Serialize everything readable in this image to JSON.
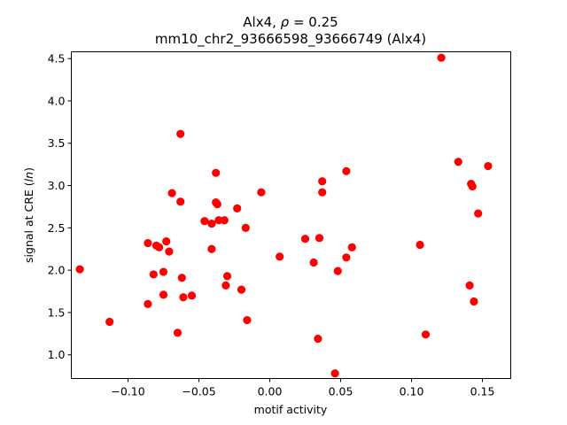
{
  "chart_data": {
    "type": "scatter",
    "title_line1_prefix": "Alx4, ",
    "title_line1_rho": "ρ",
    "title_line1_suffix": " = 0.25",
    "title_line2": "mm10_chr2_93666598_93666749 (Alx4)",
    "xlabel": "motif activity",
    "ylabel_prefix": "signal at CRE (",
    "ylabel_ln": "ln",
    "ylabel_suffix": ")",
    "xlim": [
      -0.14,
      0.17
    ],
    "ylim": [
      0.72,
      4.58
    ],
    "xticks": [
      -0.1,
      -0.05,
      0.0,
      0.05,
      0.1,
      0.15
    ],
    "xtick_labels": [
      "−0.10",
      "−0.05",
      "0.00",
      "0.05",
      "0.10",
      "0.15"
    ],
    "yticks": [
      1.0,
      1.5,
      2.0,
      2.5,
      3.0,
      3.5,
      4.0,
      4.5
    ],
    "ytick_labels": [
      "1.0",
      "1.5",
      "2.0",
      "2.5",
      "3.0",
      "3.5",
      "4.0",
      "4.5"
    ],
    "marker_color": "#ff0000",
    "grid": false,
    "legend": "none",
    "points": [
      {
        "x": -0.134,
        "y": 2.01
      },
      {
        "x": -0.113,
        "y": 1.39
      },
      {
        "x": -0.086,
        "y": 2.32
      },
      {
        "x": -0.086,
        "y": 1.6
      },
      {
        "x": -0.082,
        "y": 1.95
      },
      {
        "x": -0.08,
        "y": 2.29
      },
      {
        "x": -0.078,
        "y": 2.27
      },
      {
        "x": -0.075,
        "y": 1.98
      },
      {
        "x": -0.075,
        "y": 1.71
      },
      {
        "x": -0.073,
        "y": 2.34
      },
      {
        "x": -0.071,
        "y": 2.22
      },
      {
        "x": -0.069,
        "y": 2.91
      },
      {
        "x": -0.065,
        "y": 1.26
      },
      {
        "x": -0.063,
        "y": 3.61
      },
      {
        "x": -0.063,
        "y": 2.81
      },
      {
        "x": -0.062,
        "y": 1.91
      },
      {
        "x": -0.061,
        "y": 1.68
      },
      {
        "x": -0.055,
        "y": 1.7
      },
      {
        "x": -0.046,
        "y": 2.58
      },
      {
        "x": -0.041,
        "y": 2.25
      },
      {
        "x": -0.041,
        "y": 2.55
      },
      {
        "x": -0.038,
        "y": 3.15
      },
      {
        "x": -0.038,
        "y": 2.8
      },
      {
        "x": -0.037,
        "y": 2.78
      },
      {
        "x": -0.036,
        "y": 2.59
      },
      {
        "x": -0.032,
        "y": 2.59
      },
      {
        "x": -0.031,
        "y": 1.82
      },
      {
        "x": -0.03,
        "y": 1.93
      },
      {
        "x": -0.023,
        "y": 2.73
      },
      {
        "x": -0.02,
        "y": 1.77
      },
      {
        "x": -0.017,
        "y": 2.5
      },
      {
        "x": -0.016,
        "y": 1.41
      },
      {
        "x": -0.006,
        "y": 2.92
      },
      {
        "x": 0.007,
        "y": 2.16
      },
      {
        "x": 0.025,
        "y": 2.37
      },
      {
        "x": 0.031,
        "y": 2.09
      },
      {
        "x": 0.034,
        "y": 1.19
      },
      {
        "x": 0.035,
        "y": 2.38
      },
      {
        "x": 0.037,
        "y": 3.05
      },
      {
        "x": 0.037,
        "y": 2.92
      },
      {
        "x": 0.046,
        "y": 0.78
      },
      {
        "x": 0.048,
        "y": 1.99
      },
      {
        "x": 0.054,
        "y": 3.17
      },
      {
        "x": 0.054,
        "y": 2.15
      },
      {
        "x": 0.058,
        "y": 2.27
      },
      {
        "x": 0.106,
        "y": 2.3
      },
      {
        "x": 0.11,
        "y": 1.24
      },
      {
        "x": 0.121,
        "y": 4.51
      },
      {
        "x": 0.133,
        "y": 3.28
      },
      {
        "x": 0.141,
        "y": 1.82
      },
      {
        "x": 0.142,
        "y": 3.02
      },
      {
        "x": 0.143,
        "y": 2.99
      },
      {
        "x": 0.144,
        "y": 1.63
      },
      {
        "x": 0.147,
        "y": 2.67
      },
      {
        "x": 0.154,
        "y": 3.23
      }
    ]
  }
}
